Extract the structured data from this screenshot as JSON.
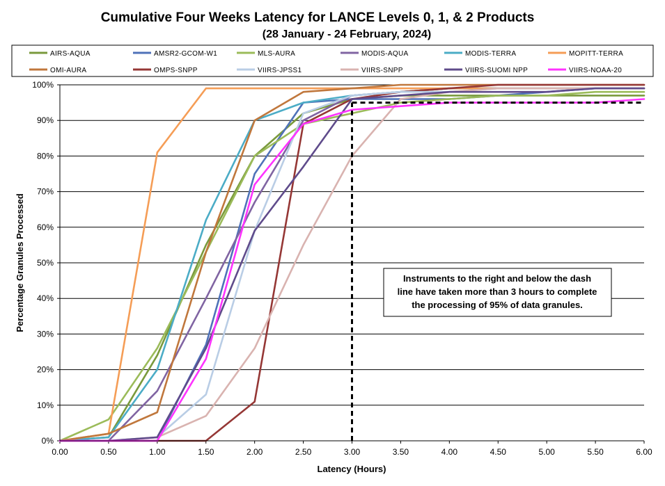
{
  "chart_data": {
    "type": "line",
    "title": "Cumulative Four Weeks Latency  for LANCE Levels 0, 1, & 2 Products",
    "subtitle": "(28  January   -  24  February,  2024)",
    "xlabel": "Latency (Hours)",
    "ylabel": "Percentage Granules Processed",
    "xlim": [
      0,
      6
    ],
    "ylim": [
      0,
      100
    ],
    "x_ticks": [
      "0.00",
      "0.50",
      "1.00",
      "1.50",
      "2.00",
      "2.50",
      "3.00",
      "3.50",
      "4.00",
      "4.50",
      "5.00",
      "5.50",
      "6.00"
    ],
    "y_ticks": [
      "0%",
      "10%",
      "20%",
      "30%",
      "40%",
      "50%",
      "60%",
      "70%",
      "80%",
      "90%",
      "100%"
    ],
    "grid": "horizontal",
    "legend_position": "top",
    "x": [
      0,
      0.5,
      1,
      1.5,
      2,
      2.5,
      3,
      3.5,
      4,
      4.5,
      5,
      5.5,
      6
    ],
    "series": [
      {
        "name": "AIRS-AQUA",
        "color": "#7a9a3c",
        "values": [
          0,
          1,
          24,
          55,
          80,
          92,
          96,
          97,
          97,
          97,
          97,
          97,
          97
        ]
      },
      {
        "name": "AMSR2-GCOM-W1",
        "color": "#4f72b8",
        "values": [
          0,
          0,
          0,
          27,
          75,
          95,
          96,
          96,
          96,
          97,
          98,
          99,
          99
        ]
      },
      {
        "name": "MLS-AURA",
        "color": "#9bbb59",
        "values": [
          0,
          6,
          26,
          53,
          80,
          89,
          92,
          95,
          96,
          97,
          97,
          98,
          98
        ]
      },
      {
        "name": "MODIS-AQUA",
        "color": "#8064a2",
        "values": [
          0,
          0,
          14,
          40,
          67,
          90,
          97,
          98,
          99,
          99,
          99,
          99,
          99
        ]
      },
      {
        "name": "MODIS-TERRA",
        "color": "#4bacc6",
        "values": [
          0,
          1,
          20,
          62,
          90,
          95,
          97,
          98,
          99,
          99,
          99,
          99,
          99
        ]
      },
      {
        "name": "MOPITT-TERRA",
        "color": "#f59d56",
        "values": [
          0,
          2,
          81,
          99,
          99,
          99,
          99,
          99,
          99,
          99,
          99,
          99,
          99
        ]
      },
      {
        "name": "OMI-AURA",
        "color": "#c0773c",
        "values": [
          0,
          2,
          8,
          53,
          90,
          98,
          99,
          100,
          100,
          100,
          100,
          100,
          100
        ]
      },
      {
        "name": "OMPS-SNPP",
        "color": "#953735",
        "values": [
          0,
          0,
          0,
          0,
          11,
          89,
          96,
          98,
          99,
          100,
          100,
          100,
          100
        ]
      },
      {
        "name": "VIIRS-JPSS1",
        "color": "#b9cde5",
        "values": [
          0,
          0,
          1,
          13,
          59,
          92,
          97,
          98,
          98,
          99,
          99,
          99,
          99
        ]
      },
      {
        "name": "VIIRS-SNPP",
        "color": "#d9b3b0",
        "values": [
          0,
          0,
          1,
          7,
          26,
          55,
          80,
          96,
          98,
          99,
          99,
          99,
          99
        ]
      },
      {
        "name": "VIIRS-SUOMI NPP",
        "color": "#5f4b8b",
        "values": [
          0,
          0,
          1,
          26,
          59,
          77,
          96,
          97,
          98,
          98,
          98,
          99,
          99
        ]
      },
      {
        "name": "VIIRS-NOAA-20",
        "color": "#ff33ff",
        "values": [
          0,
          0,
          0,
          23,
          72,
          89,
          93,
          94,
          95,
          95,
          95,
          95,
          96
        ]
      }
    ],
    "threshold": {
      "x_start": 3.0,
      "x_end": 6.0,
      "y_value": 95,
      "color": "#000000",
      "style": "dashed"
    },
    "annotation": {
      "lines": [
        "Instruments to the right and below the dash",
        "line have taken more than 3 hours to complete",
        "the processing of 95% of data granules."
      ]
    }
  }
}
